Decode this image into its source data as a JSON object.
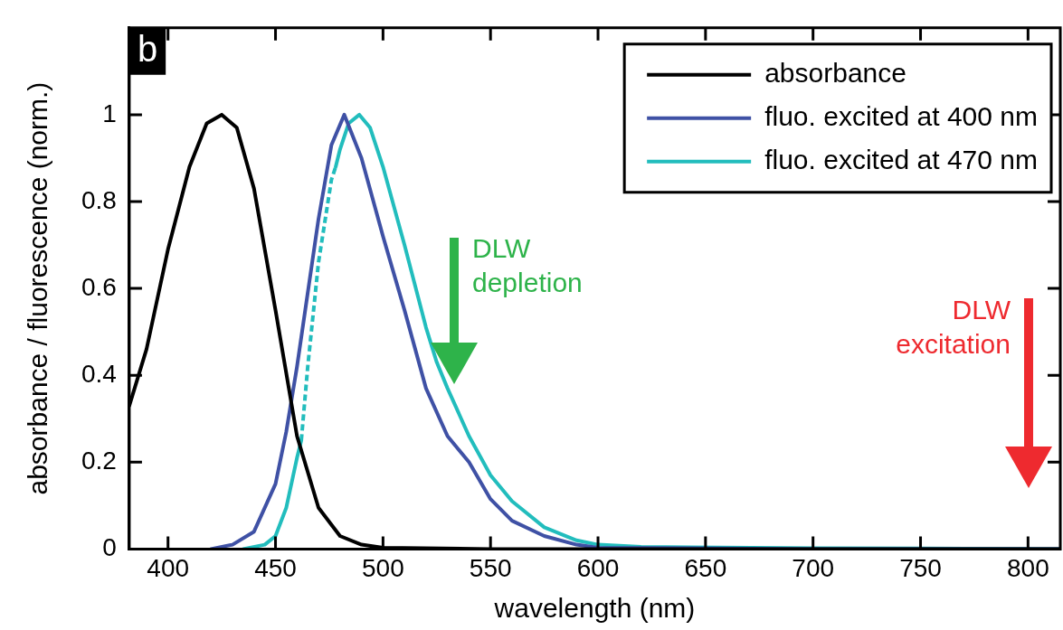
{
  "chart_data": {
    "type": "line",
    "xlabel": "wavelength (nm)",
    "ylabel": "absorbance / fluorescence (norm.)",
    "xlim": [
      382,
      815
    ],
    "xticks": [
      400,
      450,
      500,
      550,
      600,
      650,
      700,
      750,
      800
    ],
    "ylim": [
      0,
      1.2
    ],
    "yticks": [
      0,
      0.2,
      0.4,
      0.6,
      0.8,
      1
    ],
    "grid": false,
    "legend": "top right",
    "marker": "none",
    "annotations": [
      "b",
      "DLW depletion",
      "DLW excitation"
    ],
    "series": [
      {
        "name": "absorbance",
        "color": "#000000",
        "x": [
          382,
          390,
          400,
          410,
          418,
          425,
          432,
          440,
          450,
          460,
          470,
          480,
          490,
          500,
          550,
          600,
          700,
          815
        ],
        "values": [
          0.33,
          0.46,
          0.69,
          0.88,
          0.98,
          1.0,
          0.97,
          0.83,
          0.55,
          0.26,
          0.095,
          0.03,
          0.01,
          0.003,
          0.0,
          0.0,
          0.0,
          0.0
        ]
      },
      {
        "name": "fluo. excited at 400 nm",
        "color": "#3f51a5",
        "x": [
          420,
          430,
          440,
          450,
          455,
          460,
          470,
          476,
          482,
          490,
          500,
          510,
          520,
          530,
          540,
          550,
          560,
          575,
          590,
          600,
          700,
          815
        ],
        "values": [
          0.0,
          0.01,
          0.04,
          0.15,
          0.27,
          0.42,
          0.76,
          0.93,
          1.0,
          0.9,
          0.72,
          0.55,
          0.37,
          0.26,
          0.2,
          0.115,
          0.065,
          0.03,
          0.01,
          0.003,
          0.0,
          0.0
        ]
      },
      {
        "color": "#22bdbd",
        "line_style": "dotted",
        "x": [
          462,
          465,
          470,
          476,
          478
        ],
        "values": [
          0.25,
          0.42,
          0.66,
          0.85,
          0.88
        ]
      },
      {
        "name": "fluo. excited at 470 nm",
        "color": "#22bdbd",
        "x": [
          435,
          445,
          450,
          455,
          460,
          462,
          470,
          478,
          480,
          484,
          489,
          494,
          500,
          510,
          520,
          525,
          530,
          540,
          550,
          560,
          575,
          590,
          600,
          620,
          700,
          815
        ],
        "values": [
          0.0,
          0.01,
          0.03,
          0.095,
          0.21,
          0.25,
          null,
          0.88,
          0.92,
          0.98,
          1.0,
          0.97,
          0.88,
          0.7,
          0.51,
          0.43,
          0.37,
          0.26,
          0.17,
          0.11,
          0.05,
          0.02,
          0.01,
          0.005,
          0.002,
          0.0
        ]
      }
    ]
  }
}
